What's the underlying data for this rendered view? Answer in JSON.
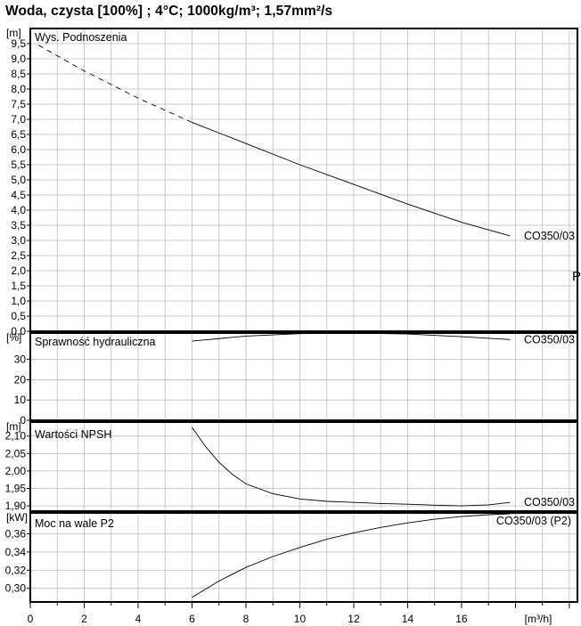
{
  "header": {
    "title": "Woda, czysta [100%] ; 4°C; 1000kg/m³; 1,57mm²/s"
  },
  "side_label": "P",
  "chart_data": [
    {
      "type": "line",
      "title": "Wys. Podnoszenia",
      "unit": "[m]",
      "xlim": [
        0,
        20.3
      ],
      "ylim": [
        0,
        10
      ],
      "yticks": [
        0,
        0.5,
        1,
        1.5,
        2,
        2.5,
        3,
        3.5,
        4,
        4.5,
        5,
        5.5,
        6,
        6.5,
        7,
        7.5,
        8,
        8.5,
        9,
        9.5
      ],
      "ytick_labels": [
        "0,0",
        "0,5",
        "1,0",
        "1,5",
        "2,0",
        "2,5",
        "3,0",
        "3,5",
        "4,0",
        "4,5",
        "5,0",
        "5,5",
        "6,0",
        "6,5",
        "7,0",
        "7,5",
        "8,0",
        "8,5",
        "9,0",
        "9,5"
      ],
      "series": [
        {
          "name": "CO350/03",
          "dashed_x": [
            0.3,
            1,
            2,
            3,
            4,
            5,
            6
          ],
          "dashed_y": [
            9.45,
            9.1,
            8.6,
            8.15,
            7.7,
            7.3,
            6.9
          ],
          "x": [
            6,
            8,
            10,
            12,
            14,
            16,
            17.8
          ],
          "y": [
            6.9,
            6.2,
            5.5,
            4.85,
            4.2,
            3.6,
            3.15
          ]
        }
      ]
    },
    {
      "type": "line",
      "title": "Sprawność hydrauliczna",
      "unit": "[%]",
      "xlim": [
        0,
        20.3
      ],
      "ylim": [
        0,
        43
      ],
      "yticks": [
        0,
        10,
        20,
        30
      ],
      "ytick_labels": [
        "0",
        "10",
        "20",
        "30"
      ],
      "series": [
        {
          "name": "CO350/03",
          "x": [
            6,
            8,
            10,
            12,
            14,
            16,
            17.8
          ],
          "y": [
            39,
            41.5,
            42.7,
            43,
            42.5,
            41.2,
            39.8
          ]
        }
      ]
    },
    {
      "type": "line",
      "title": "Wartości NPSH",
      "unit": "[m]",
      "xlim": [
        0,
        20.3
      ],
      "ylim": [
        1.885,
        2.14
      ],
      "yticks": [
        1.9,
        1.95,
        2.0,
        2.05,
        2.1
      ],
      "ytick_labels": [
        "1,90",
        "1,95",
        "2,00",
        "2,05",
        "2,10"
      ],
      "series": [
        {
          "name": "CO350/03",
          "x": [
            6,
            6.5,
            7,
            7.5,
            8,
            9,
            10,
            11,
            12,
            13,
            14,
            15,
            16,
            17,
            17.8
          ],
          "y": [
            2.125,
            2.07,
            2.025,
            1.99,
            1.963,
            1.935,
            1.92,
            1.913,
            1.91,
            1.907,
            1.905,
            1.902,
            1.9,
            1.903,
            1.91
          ]
        }
      ]
    },
    {
      "type": "line",
      "title": "Moc na wale P2",
      "unit": "[kW]",
      "xlabel": "[m³/h]",
      "xlim": [
        0,
        20.3
      ],
      "ylim": [
        0.285,
        0.383
      ],
      "xticks": [
        0,
        2,
        4,
        6,
        8,
        10,
        12,
        14,
        16
      ],
      "xtick_labels": [
        "0",
        "2",
        "4",
        "6",
        "8",
        "10",
        "12",
        "14",
        "16"
      ],
      "yticks": [
        0.3,
        0.32,
        0.34,
        0.36
      ],
      "ytick_labels": [
        "0,30",
        "0,32",
        "0,34",
        "0,36"
      ],
      "series": [
        {
          "name": "CO350/03 (P2)",
          "x": [
            6,
            7,
            8,
            9,
            10,
            11,
            12,
            13,
            14,
            15,
            16,
            17,
            17.8
          ],
          "y": [
            0.29,
            0.308,
            0.323,
            0.335,
            0.345,
            0.354,
            0.361,
            0.367,
            0.372,
            0.376,
            0.379,
            0.381,
            0.382
          ]
        }
      ]
    }
  ]
}
